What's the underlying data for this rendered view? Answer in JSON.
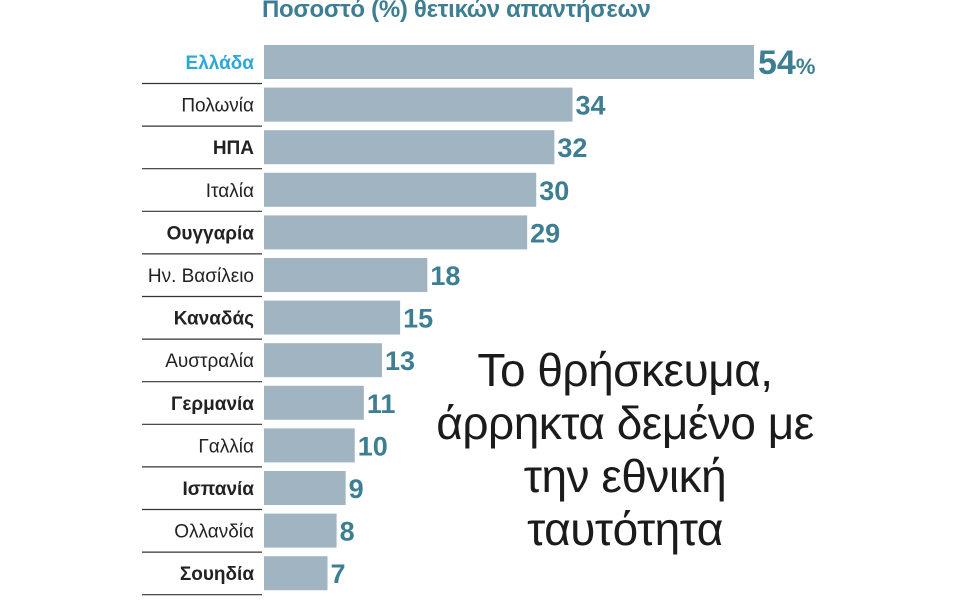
{
  "subtitle": "Ποσοστό (%) θετικών απαντήσεων",
  "headline": "Το θρήσκευμα, άρρηκτα δεμένο με την εθνική ταυτότητα",
  "colors": {
    "bar": "#a0b5c1",
    "value": "#3d7e92",
    "highlight_label": "#2aa8d8",
    "label": "#222222",
    "divider": "#333333"
  },
  "chart_data": {
    "type": "bar",
    "orientation": "horizontal",
    "title": "Ποσοστό (%) θετικών απαντήσεων",
    "categories": [
      "Ελλάδα",
      "Πολωνία",
      "ΗΠΑ",
      "Ιταλία",
      "Ουγγαρία",
      "Ην. Βασίλειο",
      "Καναδάς",
      "Αυστραλία",
      "Γερμανία",
      "Γαλλία",
      "Ισπανία",
      "Ολλανδία",
      "Σουηδία"
    ],
    "values": [
      54,
      34,
      32,
      30,
      29,
      18,
      15,
      13,
      11,
      10,
      9,
      8,
      7
    ],
    "value_labels": [
      "54",
      "34",
      "32",
      "30",
      "29",
      "18",
      "15",
      "13",
      "11",
      "10",
      "9",
      "8",
      "7"
    ],
    "unit_suffix": "%",
    "bold_labels": [
      false,
      false,
      true,
      false,
      true,
      false,
      true,
      false,
      true,
      false,
      true,
      false,
      true
    ],
    "highlight_category": "Ελλάδα",
    "xlim": [
      0,
      54
    ],
    "grid": false,
    "legend": "none"
  }
}
